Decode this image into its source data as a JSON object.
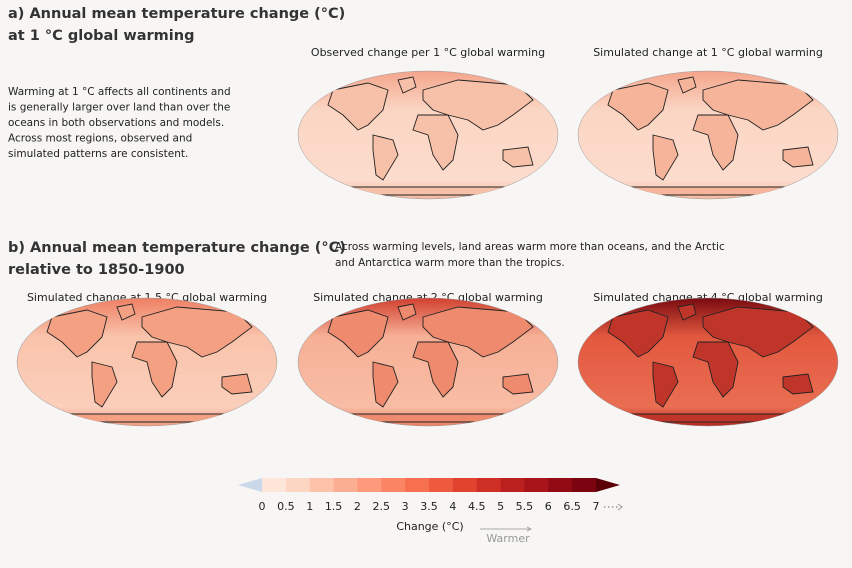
{
  "panel_a": {
    "title": [
      "a) Annual mean temperature change (°C)",
      "at 1 °C global warming"
    ],
    "text": [
      "Warming at 1 °C affects all continents and",
      "is generally larger over land than over the",
      "oceans in both observations and models.",
      "Across most regions, observed and",
      "simulated patterns are consistent."
    ],
    "maps": [
      {
        "title": "Observed change per 1 °C global warming"
      },
      {
        "title": "Simulated change at 1 °C global warming"
      }
    ]
  },
  "panel_b": {
    "title": [
      "b) Annual mean temperature change (°C)",
      "relative to 1850-1900"
    ],
    "text": [
      "Across warming levels, land areas warm more than oceans, and the Arctic",
      "and Antarctica warm more than the tropics."
    ],
    "maps": [
      {
        "title": "Simulated change at 1.5 °C global warming"
      },
      {
        "title": "Simulated change at 2 °C global warming"
      },
      {
        "title": "Simulated change at 4 °C global warming"
      }
    ]
  },
  "colorbar": {
    "labels": [
      0,
      0.5,
      1,
      1.5,
      2,
      2.5,
      3,
      3.5,
      4,
      4.5,
      5,
      5.5,
      6,
      6.5,
      7
    ],
    "label": "Change (°C)",
    "direction": "Warmer"
  }
}
